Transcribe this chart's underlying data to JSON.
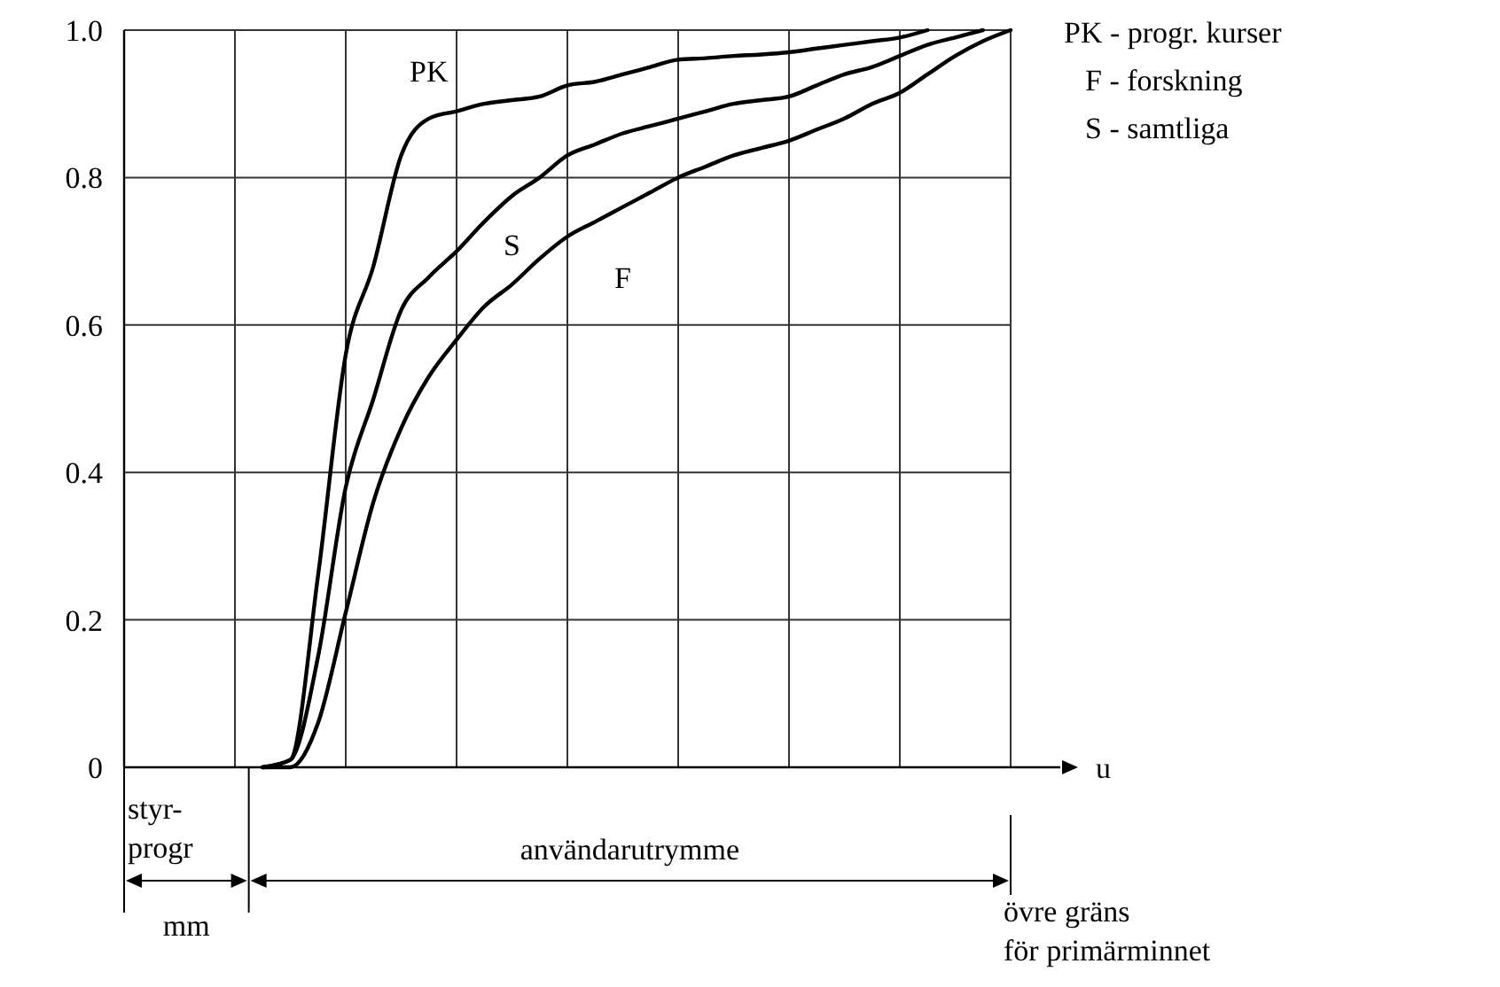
{
  "chart_data": {
    "type": "line",
    "xlabel": "u",
    "categories": [
      null,
      null,
      null,
      null,
      null,
      null,
      null,
      null,
      null,
      null,
      null,
      null,
      null,
      null,
      null,
      null,
      null,
      null,
      null,
      null,
      null,
      null,
      null,
      null,
      null,
      null,
      null,
      null,
      null,
      null,
      null,
      null,
      null
    ],
    "series": [
      {
        "name": "PK",
        "color": "#000000",
        "values": [
          null,
          null,
          null,
          null,
          null,
          0,
          0.01,
          0.26,
          0.56,
          0.68,
          0.83,
          0.88,
          0.89,
          0.9,
          0.905,
          0.91,
          0.925,
          0.93,
          0.94,
          0.95,
          0.96,
          0.962,
          0.965,
          0.967,
          0.97,
          0.975,
          0.98,
          0.985,
          0.99,
          1.0,
          null,
          null,
          null
        ]
      },
      {
        "name": "S",
        "color": "#000000",
        "values": [
          null,
          null,
          null,
          null,
          null,
          0,
          0.01,
          0.15,
          0.38,
          0.5,
          0.62,
          0.665,
          0.7,
          0.74,
          0.775,
          0.8,
          0.83,
          0.845,
          0.86,
          0.87,
          0.88,
          0.89,
          0.9,
          0.905,
          0.91,
          0.925,
          0.94,
          0.95,
          0.965,
          0.98,
          0.99,
          1.0,
          null
        ]
      },
      {
        "name": "F",
        "color": "#000000",
        "values": [
          null,
          null,
          null,
          null,
          null,
          0,
          0,
          0.06,
          0.21,
          0.36,
          0.46,
          0.53,
          0.58,
          0.625,
          0.655,
          0.69,
          0.72,
          0.74,
          0.76,
          0.78,
          0.8,
          0.815,
          0.83,
          0.84,
          0.85,
          0.865,
          0.88,
          0.9,
          0.915,
          0.94,
          0.965,
          0.985,
          1.0
        ]
      }
    ],
    "ylim": [
      0,
      1
    ],
    "yticks": [
      0,
      {
        "value": 0.2,
        "label": "0.2"
      },
      {
        "value": 0.4,
        "label": "0.4"
      },
      {
        "value": 0.6,
        "label": "0.6"
      },
      {
        "value": 0.8,
        "label": "0.8"
      },
      {
        "value": 1,
        "label": "1.0"
      }
    ],
    "tick_labels": "y",
    "grid": true,
    "line_style": "solid",
    "marker": "none",
    "annotations": [
      "PK - progr. kurser",
      "F - forskning",
      "S - samtliga",
      "styr-\nprogr",
      "mm",
      "användarutrymme",
      "övre gräns\nför primärminnet"
    ]
  }
}
